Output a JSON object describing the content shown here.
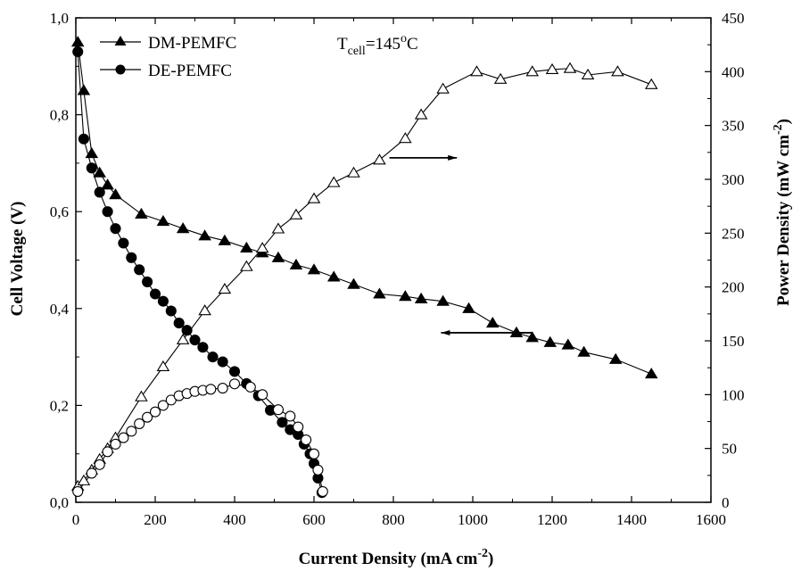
{
  "chart_data": {
    "type": "line",
    "title": "",
    "annotation": {
      "main": "T",
      "sub": "cell",
      "rest": "=145",
      "sup": "o",
      "unit": "C"
    },
    "xlabel": {
      "main": "Current Density (mA cm",
      "sup": "-2",
      "end": ")"
    },
    "ylabel_left": "Cell Voltage (V)",
    "ylabel_right": {
      "main": "Power Density (mW cm",
      "sup": "-2",
      "end": ")"
    },
    "xlim": [
      0,
      1600
    ],
    "ylim_left": [
      0,
      1.0
    ],
    "ylim_right": [
      0,
      450
    ],
    "x_ticks": [
      "0",
      "200",
      "400",
      "600",
      "800",
      "1000",
      "1200",
      "1400",
      "1600"
    ],
    "y_left_ticks": [
      "0,0",
      "0,2",
      "0,4",
      "0,6",
      "0,8",
      "1,0"
    ],
    "y_right_ticks": [
      "0",
      "50",
      "100",
      "150",
      "200",
      "250",
      "300",
      "350",
      "400",
      "450"
    ],
    "legend": {
      "position": "top-left",
      "entries": [
        {
          "label": "DM-PEMFC",
          "marker": "triangle"
        },
        {
          "label": "DE-PEMFC",
          "marker": "circle"
        }
      ]
    },
    "series": [
      {
        "name": "DM-PEMFC",
        "axis": "left",
        "marker": "triangle-filled",
        "x": [
          5,
          20,
          40,
          60,
          80,
          100,
          165,
          220,
          270,
          325,
          375,
          430,
          470,
          510,
          555,
          600,
          650,
          700,
          765,
          830,
          870,
          925,
          990,
          1050,
          1110,
          1150,
          1195,
          1240,
          1280,
          1360,
          1450
        ],
        "y": [
          0.95,
          0.85,
          0.72,
          0.68,
          0.655,
          0.635,
          0.595,
          0.58,
          0.565,
          0.55,
          0.54,
          0.525,
          0.515,
          0.505,
          0.49,
          0.48,
          0.465,
          0.45,
          0.43,
          0.425,
          0.42,
          0.415,
          0.4,
          0.37,
          0.35,
          0.34,
          0.33,
          0.325,
          0.31,
          0.295,
          0.265
        ]
      },
      {
        "name": "DE-PEMFC",
        "axis": "left",
        "marker": "circle-filled",
        "x": [
          5,
          20,
          40,
          60,
          80,
          100,
          120,
          140,
          160,
          180,
          200,
          220,
          240,
          260,
          280,
          300,
          320,
          345,
          370,
          400,
          430,
          460,
          490,
          520,
          540,
          560,
          575,
          590,
          600,
          610,
          620
        ],
        "y": [
          0.93,
          0.75,
          0.69,
          0.64,
          0.6,
          0.565,
          0.535,
          0.505,
          0.48,
          0.455,
          0.43,
          0.415,
          0.395,
          0.37,
          0.355,
          0.335,
          0.32,
          0.3,
          0.29,
          0.27,
          0.245,
          0.22,
          0.19,
          0.165,
          0.15,
          0.14,
          0.12,
          0.1,
          0.08,
          0.05,
          0.02
        ]
      },
      {
        "name": "DM-PEMFC power",
        "axis": "right",
        "marker": "triangle-open",
        "x": [
          5,
          20,
          40,
          60,
          80,
          100,
          165,
          220,
          270,
          325,
          375,
          430,
          470,
          510,
          555,
          600,
          650,
          700,
          765,
          830,
          870,
          925,
          1010,
          1070,
          1150,
          1200,
          1245,
          1290,
          1365,
          1450
        ],
        "y": [
          15,
          20,
          30,
          40,
          50,
          60,
          98,
          126,
          151,
          178,
          198,
          219,
          236,
          254,
          267,
          282,
          297,
          306,
          318,
          338,
          360,
          384,
          400,
          393,
          400,
          402,
          403,
          397,
          400,
          388
        ]
      },
      {
        "name": "DE-PEMFC power",
        "axis": "right",
        "marker": "circle-open",
        "x": [
          5,
          40,
          60,
          80,
          100,
          120,
          140,
          160,
          180,
          200,
          220,
          240,
          260,
          280,
          300,
          320,
          340,
          370,
          400,
          440,
          470,
          510,
          540,
          560,
          580,
          600,
          610,
          622
        ],
        "y": [
          10,
          27,
          35,
          47,
          54,
          60,
          66,
          73,
          79,
          84,
          90,
          95,
          99,
          101,
          103,
          104,
          105,
          106,
          110,
          107,
          100,
          86,
          80,
          70,
          58,
          45,
          30,
          10
        ]
      }
    ],
    "arrows": [
      {
        "direction": "right",
        "axis": "right",
        "x_start": 790,
        "x_end": 960,
        "y": 320
      },
      {
        "direction": "left",
        "axis": "left",
        "x_start": 920,
        "x_end": 1150,
        "y": 0.35
      }
    ]
  }
}
